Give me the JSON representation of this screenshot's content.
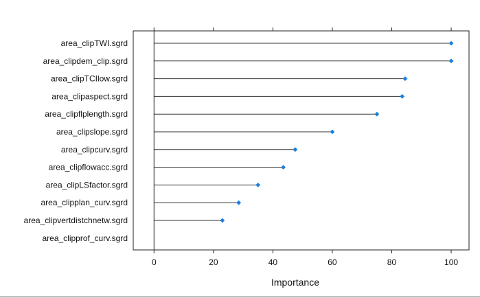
{
  "chart_data": {
    "type": "dotplot",
    "categories": [
      "area_clipTWI.sgrd",
      "area_clipdem_clip.sgrd",
      "area_clipTCIlow.sgrd",
      "area_clipaspect.sgrd",
      "area_clipflplength.sgrd",
      "area_clipslope.sgrd",
      "area_clipcurv.sgrd",
      "area_clipflowacc.sgrd",
      "area_clipLSfactor.sgrd",
      "area_clipplan_curv.sgrd",
      "area_clipvertdistchnetw.sgrd",
      "area_clipprof_curv.sgrd"
    ],
    "values": [
      100,
      100,
      84.5,
      83.5,
      75,
      60,
      47.5,
      43.5,
      35,
      28.5,
      23,
      0
    ],
    "xlabel": "Importance",
    "xlim": [
      -7,
      106
    ],
    "xticks": [
      0,
      20,
      40,
      60,
      80,
      100
    ],
    "point_color": "#1a7fe0",
    "line_color": "#333333",
    "grid": false,
    "legend": "none"
  }
}
